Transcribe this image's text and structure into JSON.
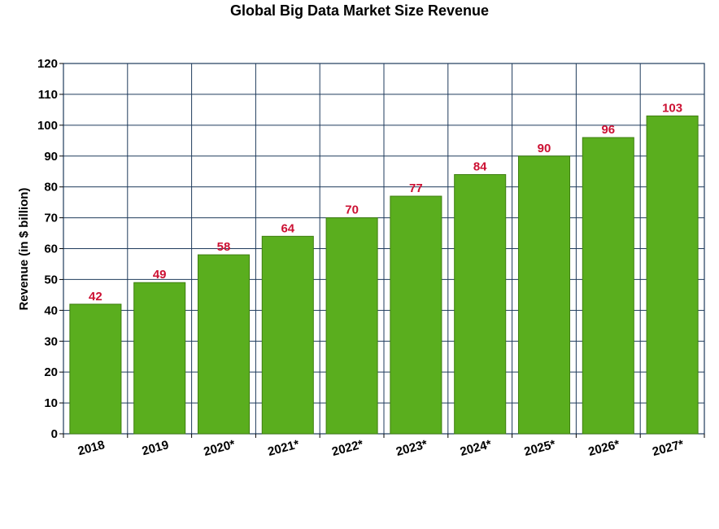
{
  "chart_data": {
    "type": "bar",
    "title": "Global Big Data Market Size Revenue",
    "xlabel": "",
    "ylabel": "Revenue (in $ billion)",
    "categories": [
      "2018",
      "2019",
      "2020*",
      "2021*",
      "2022*",
      "2023*",
      "2024*",
      "2025*",
      "2026*",
      "2027*"
    ],
    "values": [
      42,
      49,
      58,
      64,
      70,
      77,
      84,
      90,
      96,
      103
    ],
    "ylim": [
      0,
      120
    ],
    "yticks": [
      0,
      10,
      20,
      30,
      40,
      50,
      60,
      70,
      80,
      90,
      100,
      110,
      120
    ],
    "grid": true,
    "colors": {
      "bar": "#5aae1e",
      "bar_edge": "#3f7f10",
      "data_label": "#cc1133",
      "grid": "#1f3b5c"
    }
  }
}
